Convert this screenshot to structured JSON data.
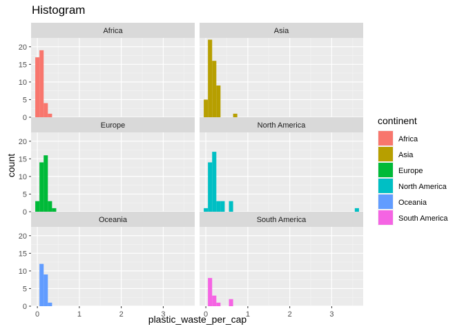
{
  "chart_data": {
    "type": "histogram",
    "title": "Histogram",
    "xlabel": "plastic_waste_per_cap",
    "ylabel": "count",
    "bin_width": 0.1,
    "xlim": [
      -0.15,
      3.75
    ],
    "ylim": [
      0,
      22.5
    ],
    "x_ticks": [
      0,
      1,
      2,
      3
    ],
    "y_ticks": [
      0,
      5,
      10,
      15,
      20
    ],
    "grid": true,
    "legend_title": "continent",
    "legend_position": "right",
    "panels": [
      {
        "name": "Africa",
        "color": "#F8766D",
        "bins": [
          {
            "x": 0.0,
            "count": 17
          },
          {
            "x": 0.1,
            "count": 19
          },
          {
            "x": 0.2,
            "count": 4
          },
          {
            "x": 0.3,
            "count": 1
          }
        ]
      },
      {
        "name": "Asia",
        "color": "#B79F00",
        "bins": [
          {
            "x": 0.0,
            "count": 5
          },
          {
            "x": 0.1,
            "count": 22
          },
          {
            "x": 0.2,
            "count": 16
          },
          {
            "x": 0.3,
            "count": 9
          },
          {
            "x": 0.7,
            "count": 1
          }
        ]
      },
      {
        "name": "Europe",
        "color": "#00BA38",
        "bins": [
          {
            "x": 0.0,
            "count": 3
          },
          {
            "x": 0.1,
            "count": 14
          },
          {
            "x": 0.2,
            "count": 16
          },
          {
            "x": 0.3,
            "count": 3
          },
          {
            "x": 0.4,
            "count": 1
          }
        ]
      },
      {
        "name": "North America",
        "color": "#00BFC4",
        "bins": [
          {
            "x": 0.0,
            "count": 1
          },
          {
            "x": 0.1,
            "count": 14
          },
          {
            "x": 0.2,
            "count": 17
          },
          {
            "x": 0.3,
            "count": 3
          },
          {
            "x": 0.4,
            "count": 3
          },
          {
            "x": 0.6,
            "count": 3
          },
          {
            "x": 3.6,
            "count": 1
          }
        ]
      },
      {
        "name": "Oceania",
        "color": "#619CFF",
        "bins": [
          {
            "x": 0.1,
            "count": 12
          },
          {
            "x": 0.2,
            "count": 9
          },
          {
            "x": 0.3,
            "count": 1
          }
        ]
      },
      {
        "name": "South America",
        "color": "#F564E3",
        "bins": [
          {
            "x": 0.1,
            "count": 8
          },
          {
            "x": 0.2,
            "count": 3
          },
          {
            "x": 0.3,
            "count": 1
          },
          {
            "x": 0.6,
            "count": 2
          }
        ]
      }
    ]
  }
}
